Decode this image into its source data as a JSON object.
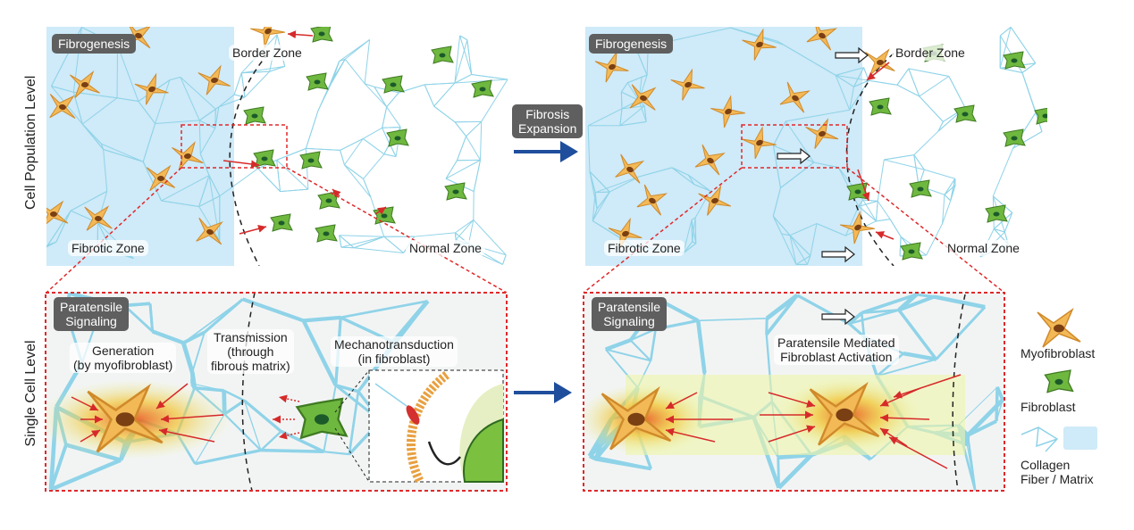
{
  "row_labels": {
    "top": "Cell Population Level",
    "bottom": "Single Cell Level"
  },
  "center": {
    "transition": "Fibrosis\nExpansion"
  },
  "top_left": {
    "tag": "Fibrogenesis",
    "border": "Border Zone",
    "fibrotic": "Fibrotic Zone",
    "normal": "Normal Zone"
  },
  "top_right": {
    "tag": "Fibrogenesis",
    "border": "Border Zone",
    "fibrotic": "Fibrotic Zone",
    "normal": "Normal Zone"
  },
  "bottom_left": {
    "tag": "Paratensile\nSignaling",
    "generation": "Generation\n(by myofibroblast)",
    "transmission": "Transmission\n(through\nfibrous matrix)",
    "mechano": "Mechanotransduction\n(in fibroblast)"
  },
  "bottom_right": {
    "tag": "Paratensile\nSignaling",
    "activation": "Paratensile Mediated\nFibroblast Activation"
  },
  "legend": {
    "myofibroblast": "Myofibroblast",
    "fibroblast": "Fibroblast",
    "collagen": "Collagen\nFiber / Matrix"
  },
  "colors": {
    "fiber": "#8fd3e8",
    "matrix": "#cfeaf8",
    "myofibroblast": "#f3b957",
    "fibroblast": "#6fb83f",
    "highlight_box": "#e0282a",
    "flow_arrow": "#1f4e9c",
    "signal_arrow": "#d62a2a"
  }
}
